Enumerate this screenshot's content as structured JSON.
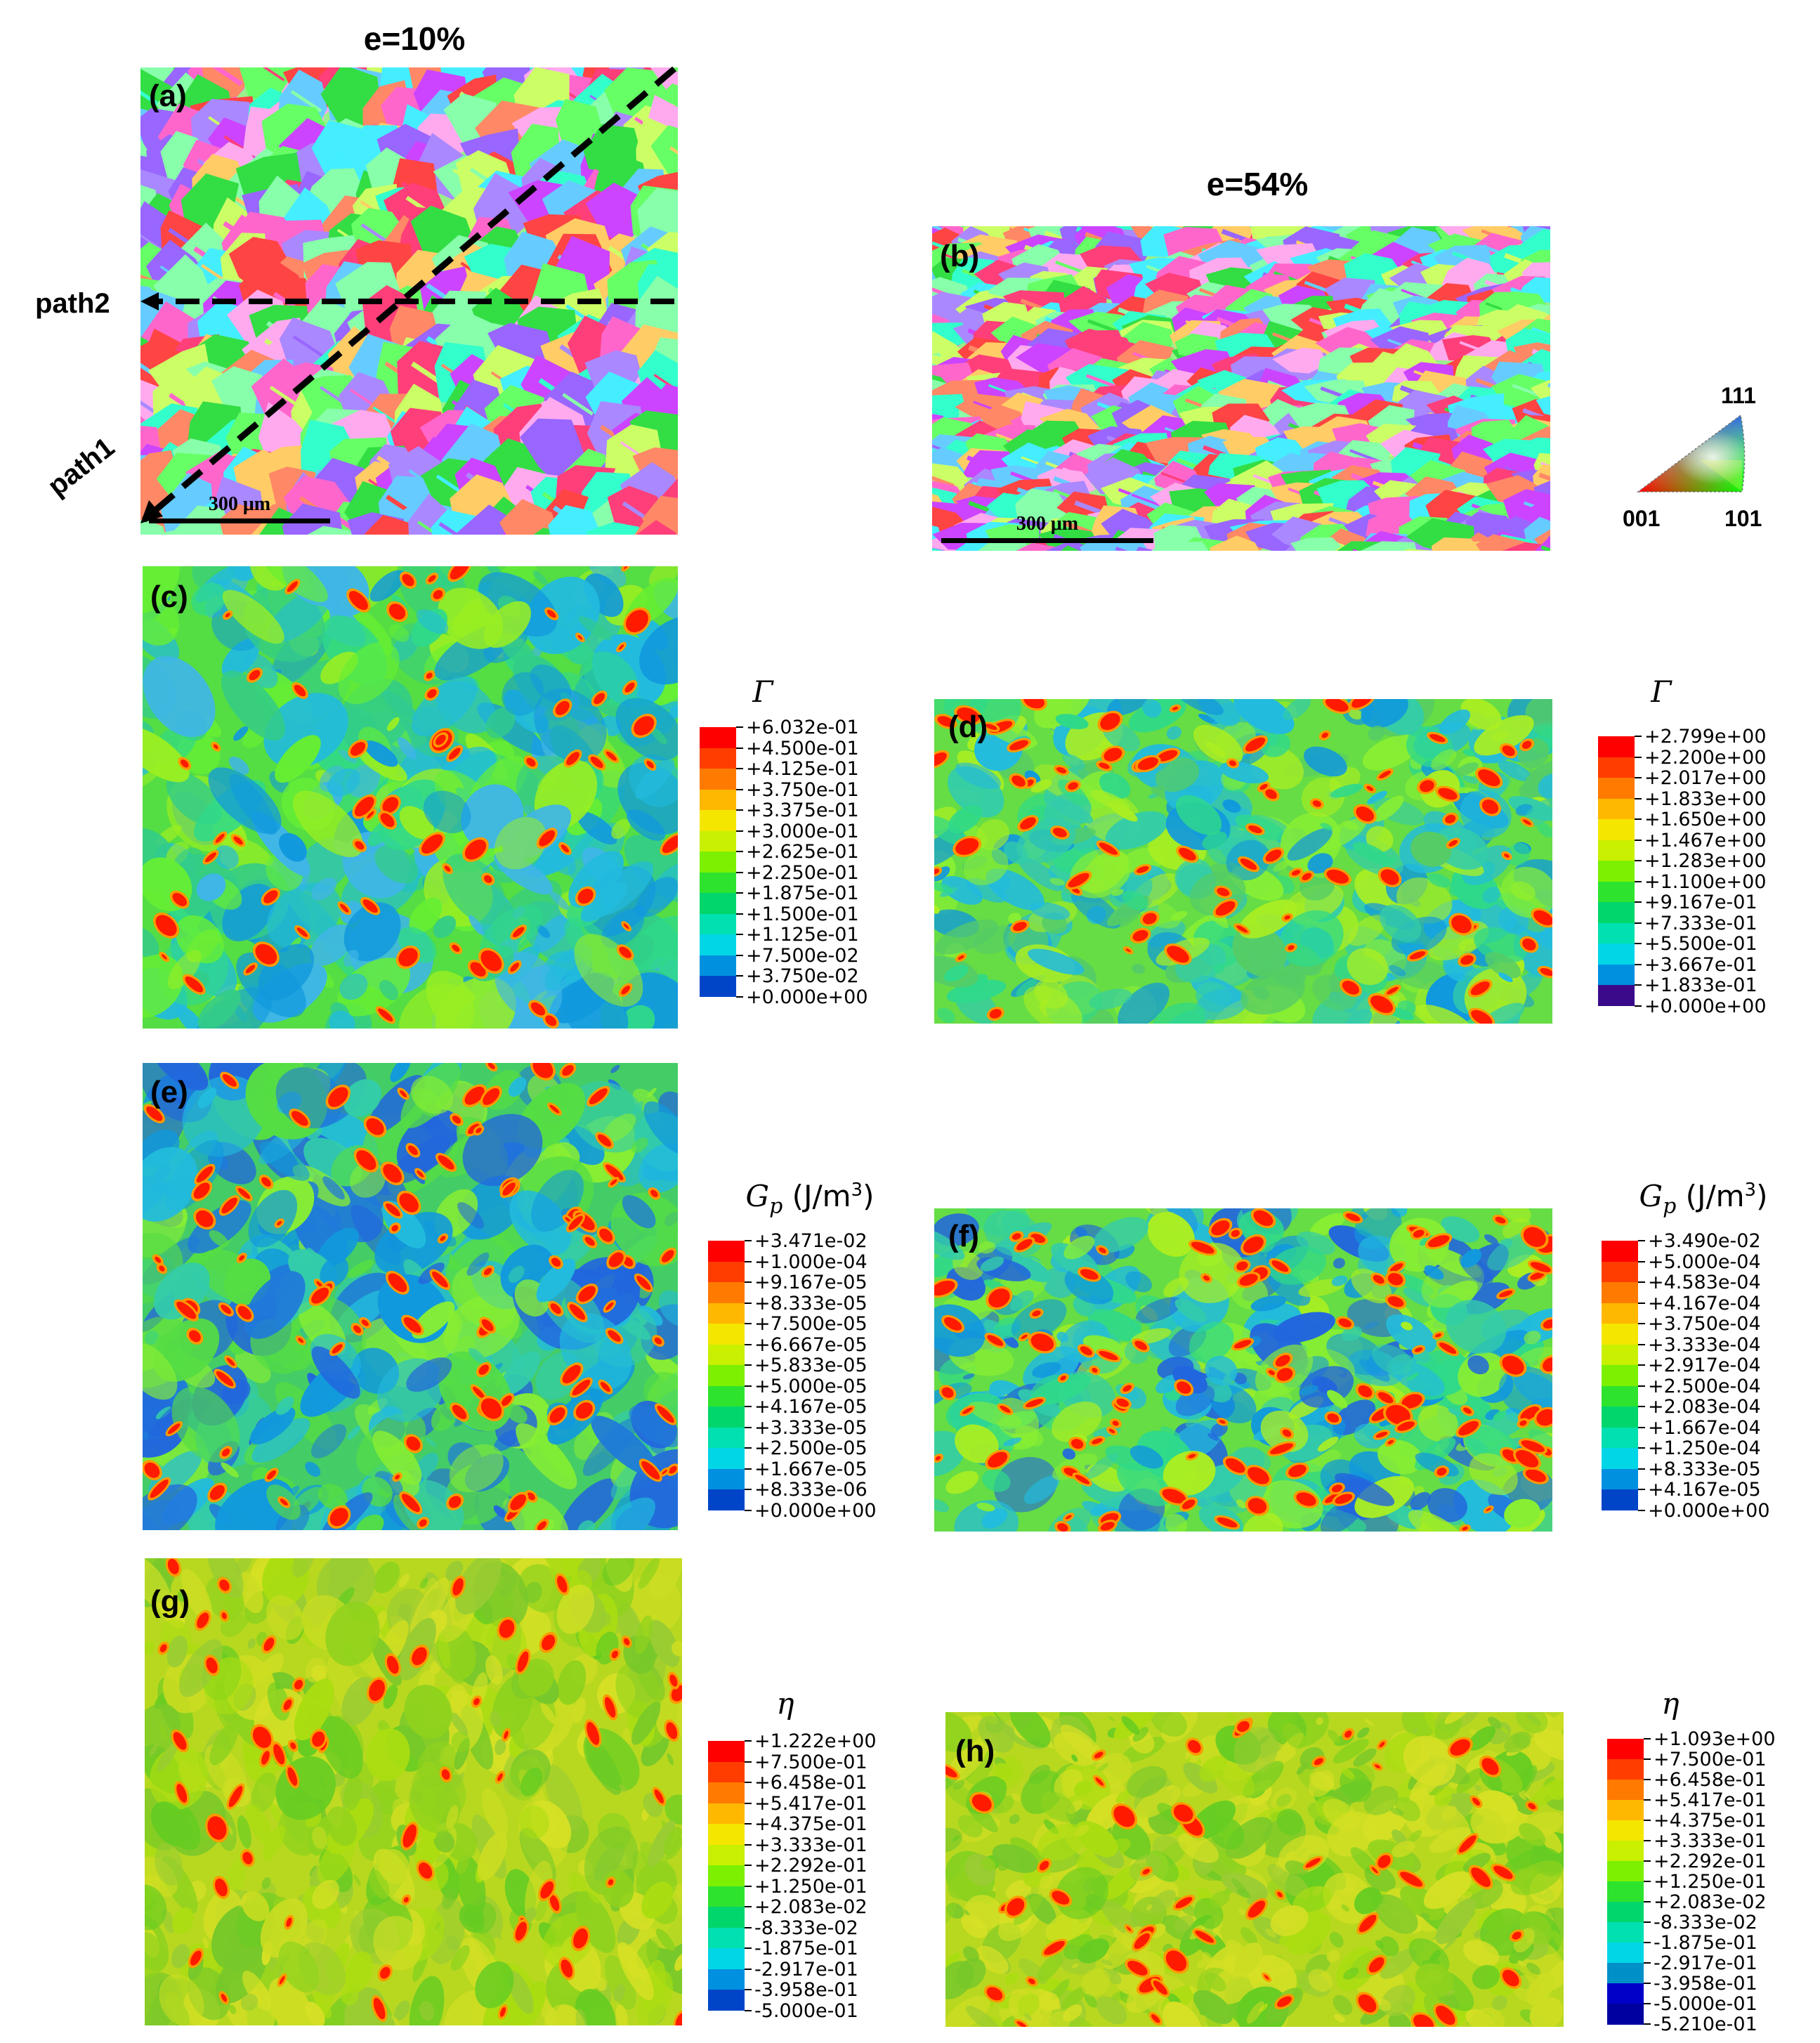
{
  "headings": {
    "strain_left": "e=10%",
    "strain_right": "e=54%"
  },
  "panels": {
    "a": "(a)",
    "b": "(b)",
    "c": "(c)",
    "d": "(d)",
    "e": "(e)",
    "f": "(f)",
    "g": "(g)",
    "h": "(h)"
  },
  "paths": {
    "path1": "path1",
    "path2": "path2"
  },
  "scale_bars": {
    "a": "300 μm",
    "b": "300 μm"
  },
  "ipf_key": {
    "top": "111",
    "left": "001",
    "right": "101"
  },
  "legends": {
    "c": {
      "title": "Γ",
      "values": [
        "+6.032e-01",
        "+4.500e-01",
        "+4.125e-01",
        "+3.750e-01",
        "+3.375e-01",
        "+3.000e-01",
        "+2.625e-01",
        "+2.250e-01",
        "+1.875e-01",
        "+1.500e-01",
        "+1.125e-01",
        "+7.500e-02",
        "+3.750e-02",
        "+0.000e+00"
      ]
    },
    "d": {
      "title": "Γ",
      "values": [
        "+2.799e+00",
        "+2.200e+00",
        "+2.017e+00",
        "+1.833e+00",
        "+1.650e+00",
        "+1.467e+00",
        "+1.283e+00",
        "+1.100e+00",
        "+9.167e-01",
        "+7.333e-01",
        "+5.500e-01",
        "+3.667e-01",
        "+1.833e-01",
        "+0.000e+00"
      ]
    },
    "e": {
      "title_symbol": "G",
      "title_sub": "p",
      "title_unit": " (J/m",
      "title_sup": "3",
      "title_close": ")",
      "values": [
        "+3.471e-02",
        "+1.000e-04",
        "+9.167e-05",
        "+8.333e-05",
        "+7.500e-05",
        "+6.667e-05",
        "+5.833e-05",
        "+5.000e-05",
        "+4.167e-05",
        "+3.333e-05",
        "+2.500e-05",
        "+1.667e-05",
        "+8.333e-06",
        "+0.000e+00"
      ]
    },
    "f": {
      "title_symbol": "G",
      "title_sub": "p",
      "title_unit": " (J/m",
      "title_sup": "3",
      "title_close": ")",
      "values": [
        "+3.490e-02",
        "+5.000e-04",
        "+4.583e-04",
        "+4.167e-04",
        "+3.750e-04",
        "+3.333e-04",
        "+2.917e-04",
        "+2.500e-04",
        "+2.083e-04",
        "+1.667e-04",
        "+1.250e-04",
        "+8.333e-05",
        "+4.167e-05",
        "+0.000e+00"
      ]
    },
    "g": {
      "title": "η",
      "values": [
        "+1.222e+00",
        "+7.500e-01",
        "+6.458e-01",
        "+5.417e-01",
        "+4.375e-01",
        "+3.333e-01",
        "+2.292e-01",
        "+1.250e-01",
        "+2.083e-02",
        "-8.333e-02",
        "-1.875e-01",
        "-2.917e-01",
        "-3.958e-01",
        "-5.000e-01"
      ]
    },
    "h": {
      "title": "η",
      "values": [
        "+1.093e+00",
        "+7.500e-01",
        "+6.458e-01",
        "+5.417e-01",
        "+4.375e-01",
        "+3.333e-01",
        "+2.292e-01",
        "+1.250e-01",
        "+2.083e-02",
        "-8.333e-02",
        "-1.875e-01",
        "-2.917e-01",
        "-3.958e-01",
        "-5.000e-01",
        "-5.210e-01"
      ]
    }
  },
  "colors": {
    "contour13": [
      "#ff0000",
      "#ff3d00",
      "#ff7a00",
      "#ffb800",
      "#f5e600",
      "#c8f000",
      "#7cf000",
      "#2ee32e",
      "#00d66b",
      "#00e0b0",
      "#00d6e6",
      "#0090e0",
      "#0045c8"
    ],
    "contour13_low_purple": [
      "#ff0000",
      "#ff3d00",
      "#ff7a00",
      "#ffb800",
      "#f5e600",
      "#c8f000",
      "#7cf000",
      "#2ee32e",
      "#00d66b",
      "#00e0b0",
      "#00d6e6",
      "#0090e0",
      "#3a0a8a"
    ],
    "contour14_eta": [
      "#ff0000",
      "#ff3d00",
      "#ff7a00",
      "#ffb800",
      "#f5e600",
      "#c8f000",
      "#7cf000",
      "#2ee32e",
      "#00d66b",
      "#00e0b0",
      "#00d6e6",
      "#0090c8",
      "#0000c8",
      "#0000a0"
    ]
  }
}
